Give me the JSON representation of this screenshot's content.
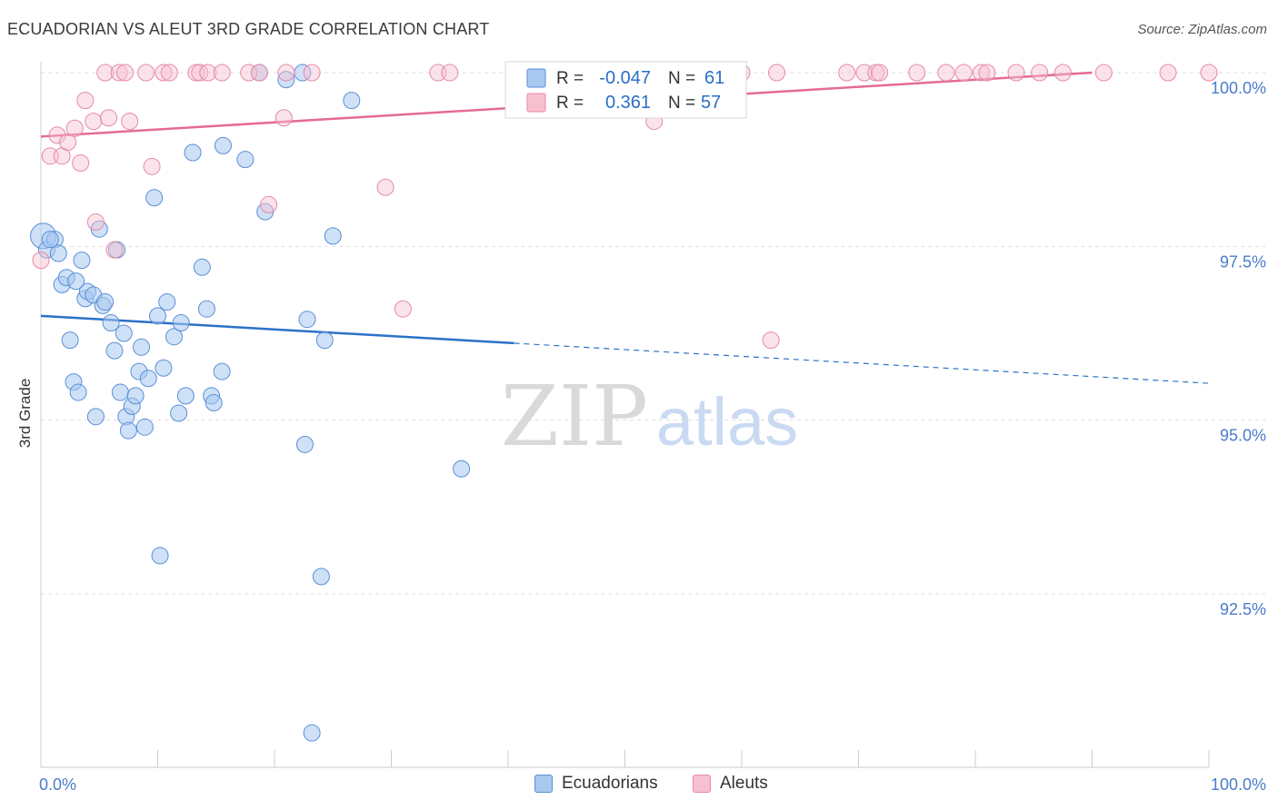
{
  "header": {
    "title": "ECUADORIAN VS ALEUT 3RD GRADE CORRELATION CHART",
    "source": "Source: ZipAtlas.com"
  },
  "watermark": {
    "zip": "ZIP",
    "atlas": "atlas"
  },
  "chart_data": {
    "type": "scatter",
    "ylabel": "3rd Grade",
    "xlim": [
      0,
      100
    ],
    "ylim": [
      90.25,
      100.3
    ],
    "x_tick_labels": [
      "0.0%",
      "100.0%"
    ],
    "y_tick_labels": [
      "100.0%",
      "97.5%",
      "95.0%",
      "92.5%"
    ],
    "y_ticks": [
      100.0,
      97.5,
      95.0,
      92.5
    ],
    "grid": true,
    "legend_placement": "top-center",
    "colors": {
      "ecuadorians_fill": "#a8c8f0",
      "ecuadorians_stroke": "#5a8fd6",
      "ecuadorians_line": "#2a72c8",
      "aleuts_fill": "#f7c0d0",
      "aleuts_stroke": "#e58aa8",
      "aleuts_line": "#e56b94",
      "axis_text": "#4a7cc9"
    },
    "legend": [
      {
        "r_label": "R =",
        "r_value": "-0.047",
        "n_label": "N =",
        "n_value": "61"
      },
      {
        "r_label": "R =",
        "r_value": "0.361",
        "n_label": "N =",
        "n_value": "57"
      }
    ],
    "series": [
      {
        "name": "Ecuadorians",
        "trend": {
          "x0": 0,
          "y0": 96.5,
          "x1": 100,
          "y1": 95.53,
          "solid_until": 40.5
        },
        "points": [
          [
            0.2,
            97.65
          ],
          [
            0.5,
            97.45
          ],
          [
            1.2,
            97.6
          ],
          [
            1.5,
            97.4
          ],
          [
            1.8,
            96.95
          ],
          [
            2.2,
            97.05
          ],
          [
            2.5,
            96.15
          ],
          [
            2.8,
            95.55
          ],
          [
            3.2,
            95.4
          ],
          [
            3.5,
            97.3
          ],
          [
            3.8,
            96.75
          ],
          [
            4.0,
            96.85
          ],
          [
            4.5,
            96.8
          ],
          [
            4.7,
            95.05
          ],
          [
            5.0,
            97.75
          ],
          [
            5.3,
            96.65
          ],
          [
            5.5,
            96.7
          ],
          [
            6.0,
            96.4
          ],
          [
            6.3,
            96.0
          ],
          [
            6.5,
            97.45
          ],
          [
            6.8,
            95.4
          ],
          [
            7.1,
            96.25
          ],
          [
            7.3,
            95.05
          ],
          [
            7.5,
            94.85
          ],
          [
            7.8,
            95.2
          ],
          [
            8.1,
            95.35
          ],
          [
            8.4,
            95.7
          ],
          [
            8.6,
            96.05
          ],
          [
            8.9,
            94.9
          ],
          [
            9.2,
            95.6
          ],
          [
            9.7,
            98.2
          ],
          [
            10.0,
            96.5
          ],
          [
            10.2,
            93.05
          ],
          [
            10.5,
            95.75
          ],
          [
            10.8,
            96.7
          ],
          [
            11.4,
            96.2
          ],
          [
            11.8,
            95.1
          ],
          [
            12.0,
            96.4
          ],
          [
            12.4,
            95.35
          ],
          [
            13.0,
            98.85
          ],
          [
            13.8,
            97.2
          ],
          [
            14.2,
            96.6
          ],
          [
            14.6,
            95.35
          ],
          [
            14.8,
            95.25
          ],
          [
            15.5,
            95.7
          ],
          [
            15.6,
            98.95
          ],
          [
            17.5,
            98.75
          ],
          [
            18.7,
            100.0
          ],
          [
            19.2,
            98.0
          ],
          [
            21.0,
            99.9
          ],
          [
            22.4,
            100.0
          ],
          [
            22.6,
            94.65
          ],
          [
            22.8,
            96.45
          ],
          [
            23.2,
            90.5
          ],
          [
            24.0,
            92.75
          ],
          [
            24.3,
            96.15
          ],
          [
            25.0,
            97.65
          ],
          [
            26.6,
            99.6
          ],
          [
            36.0,
            94.3
          ],
          [
            0.8,
            97.6
          ],
          [
            3.0,
            97.0
          ]
        ]
      },
      {
        "name": "Aleuts",
        "trend": {
          "x0": 0,
          "y0": 99.08,
          "x1": 90,
          "y1": 100.0,
          "solid_until": 90
        },
        "points": [
          [
            0.0,
            97.3
          ],
          [
            0.8,
            98.8
          ],
          [
            1.4,
            99.1
          ],
          [
            1.8,
            98.8
          ],
          [
            2.3,
            99.0
          ],
          [
            2.9,
            99.2
          ],
          [
            3.4,
            98.7
          ],
          [
            3.8,
            99.6
          ],
          [
            4.5,
            99.3
          ],
          [
            4.7,
            97.85
          ],
          [
            5.5,
            100.0
          ],
          [
            5.8,
            99.35
          ],
          [
            6.3,
            97.45
          ],
          [
            6.7,
            100.0
          ],
          [
            7.2,
            100.0
          ],
          [
            7.6,
            99.3
          ],
          [
            9.0,
            100.0
          ],
          [
            9.5,
            98.65
          ],
          [
            10.5,
            100.0
          ],
          [
            11.0,
            100.0
          ],
          [
            13.3,
            100.0
          ],
          [
            13.6,
            100.0
          ],
          [
            14.3,
            100.0
          ],
          [
            15.5,
            100.0
          ],
          [
            17.8,
            100.0
          ],
          [
            18.7,
            100.0
          ],
          [
            19.5,
            98.1
          ],
          [
            20.8,
            99.35
          ],
          [
            21.0,
            100.0
          ],
          [
            23.2,
            100.0
          ],
          [
            29.5,
            98.35
          ],
          [
            31.0,
            96.6
          ],
          [
            34.0,
            100.0
          ],
          [
            35.0,
            100.0
          ],
          [
            42.0,
            100.0
          ],
          [
            47.0,
            100.0
          ],
          [
            52.0,
            100.0
          ],
          [
            52.5,
            99.3
          ],
          [
            56.0,
            100.0
          ],
          [
            60.0,
            100.0
          ],
          [
            62.5,
            96.15
          ],
          [
            63.0,
            100.0
          ],
          [
            69.0,
            100.0
          ],
          [
            70.5,
            100.0
          ],
          [
            71.5,
            100.0
          ],
          [
            71.8,
            100.0
          ],
          [
            75.0,
            100.0
          ],
          [
            77.5,
            100.0
          ],
          [
            79.0,
            100.0
          ],
          [
            80.5,
            100.0
          ],
          [
            81.0,
            100.0
          ],
          [
            83.5,
            100.0
          ],
          [
            85.5,
            100.0
          ],
          [
            87.5,
            100.0
          ],
          [
            91.0,
            100.0
          ],
          [
            96.5,
            100.0
          ],
          [
            100.0,
            100.0
          ]
        ]
      }
    ]
  }
}
